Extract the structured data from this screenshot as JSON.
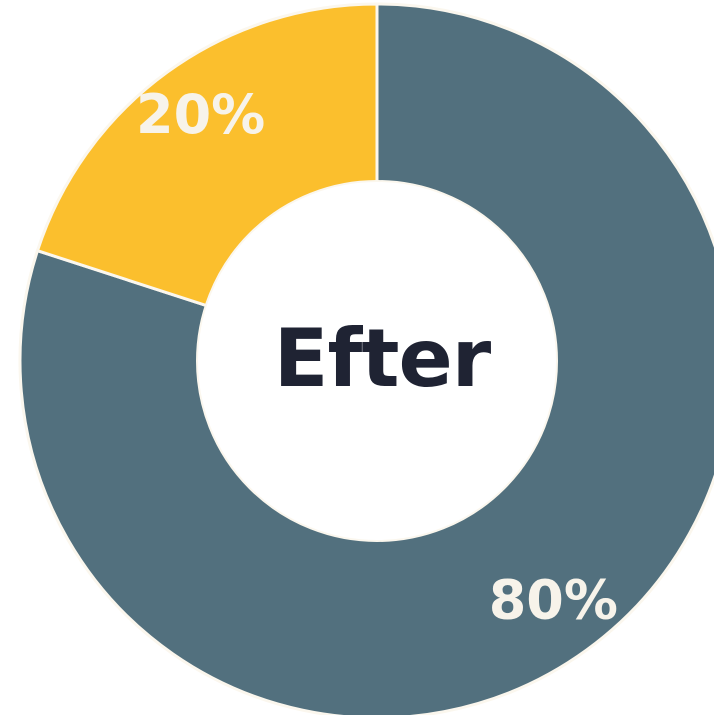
{
  "chart_data": {
    "type": "pie",
    "variant": "donut",
    "center_label": "Efter",
    "slices": [
      {
        "value": 80,
        "label": "80%",
        "color": "#52707e"
      },
      {
        "value": 20,
        "label": "20%",
        "color": "#fbbf2d"
      }
    ],
    "background": "#ffffff",
    "hole_color": "#ffffff",
    "center_text_color": "#1f2333",
    "slice_label_color": "#f7f3ea"
  }
}
